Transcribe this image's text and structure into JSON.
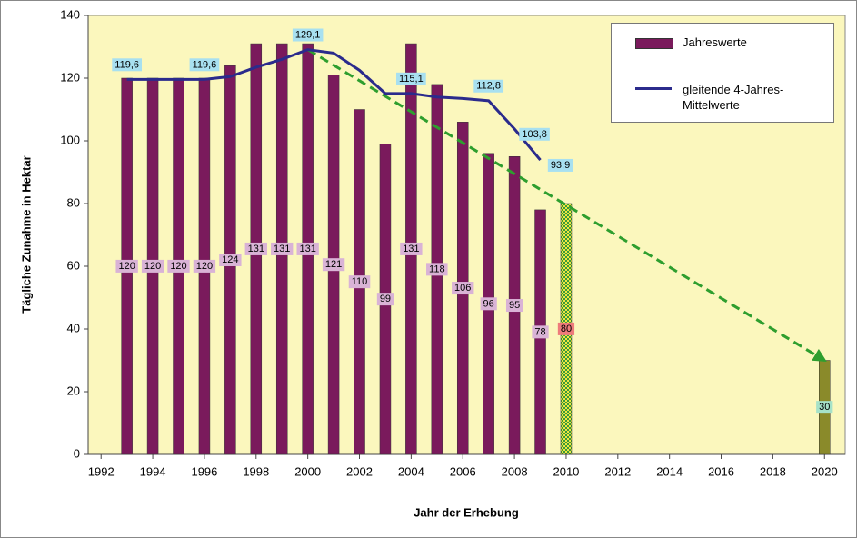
{
  "chart_data": {
    "type": "bar",
    "ylabel": "Tägliche Zunahme in Hektar",
    "xlabel": "Jahr der Erhebung",
    "xlim": [
      1991.5,
      2020.8
    ],
    "ylim": [
      0,
      140
    ],
    "xticks": [
      1992,
      1994,
      1996,
      1998,
      2000,
      2002,
      2004,
      2006,
      2008,
      2010,
      2012,
      2014,
      2016,
      2018,
      2020
    ],
    "yticks": [
      0,
      20,
      40,
      60,
      80,
      100,
      120,
      140
    ],
    "background": "#fbf7bd",
    "series": [
      {
        "name": "Jahreswerte",
        "type": "bar",
        "color": "#7a1a5c",
        "x": [
          1993,
          1994,
          1995,
          1996,
          1997,
          1998,
          1999,
          2000,
          2001,
          2002,
          2003,
          2004,
          2005,
          2006,
          2007,
          2008,
          2009,
          2010,
          2020
        ],
        "values": [
          120,
          120,
          120,
          120,
          124,
          131,
          131,
          131,
          121,
          110,
          99,
          131,
          118,
          106,
          96,
          95,
          78,
          80,
          30
        ],
        "colors": [
          "#7a1a5c",
          "#7a1a5c",
          "#7a1a5c",
          "#7a1a5c",
          "#7a1a5c",
          "#7a1a5c",
          "#7a1a5c",
          "#7a1a5c",
          "#7a1a5c",
          "#7a1a5c",
          "#7a1a5c",
          "#7a1a5c",
          "#7a1a5c",
          "#7a1a5c",
          "#7a1a5c",
          "#7a1a5c",
          "#7a1a5c",
          "url(#checker)",
          "#8a8a2a"
        ],
        "label_colors": [
          "#d9b3d6",
          "#d9b3d6",
          "#d9b3d6",
          "#d9b3d6",
          "#d9b3d6",
          "#d9b3d6",
          "#d9b3d6",
          "#d9b3d6",
          "#d9b3d6",
          "#d9b3d6",
          "#d9b3d6",
          "#d9b3d6",
          "#d9b3d6",
          "#d9b3d6",
          "#d9b3d6",
          "#d9b3d6",
          "#d9b3d6",
          "#ee7b7b",
          "#a6e2c8"
        ]
      },
      {
        "name": "gleitende 4-Jahres-Mittelwerte",
        "type": "line",
        "color": "#2b2b8c",
        "x": [
          1993,
          1994,
          1995,
          1996,
          1997,
          1998,
          1999,
          2000,
          2001,
          2002,
          2003,
          2004,
          2005,
          2006,
          2007,
          2008,
          2009
        ],
        "values": [
          119.6,
          119.6,
          119.6,
          119.6,
          120.5,
          123.5,
          126,
          129.1,
          128,
          122.5,
          115.1,
          115.1,
          114,
          113.5,
          112.8,
          103.8,
          93.9
        ],
        "value_labels": [
          "119,6",
          null,
          null,
          "119,6",
          null,
          null,
          null,
          "129,1",
          null,
          null,
          null,
          "115,1",
          null,
          null,
          "112,8",
          "103,8",
          "93,9"
        ],
        "label_color": "#a8e0f0"
      }
    ],
    "trend": {
      "color": "#2e9e2e",
      "x": [
        2000,
        2020
      ],
      "values": [
        129.1,
        30
      ]
    }
  }
}
